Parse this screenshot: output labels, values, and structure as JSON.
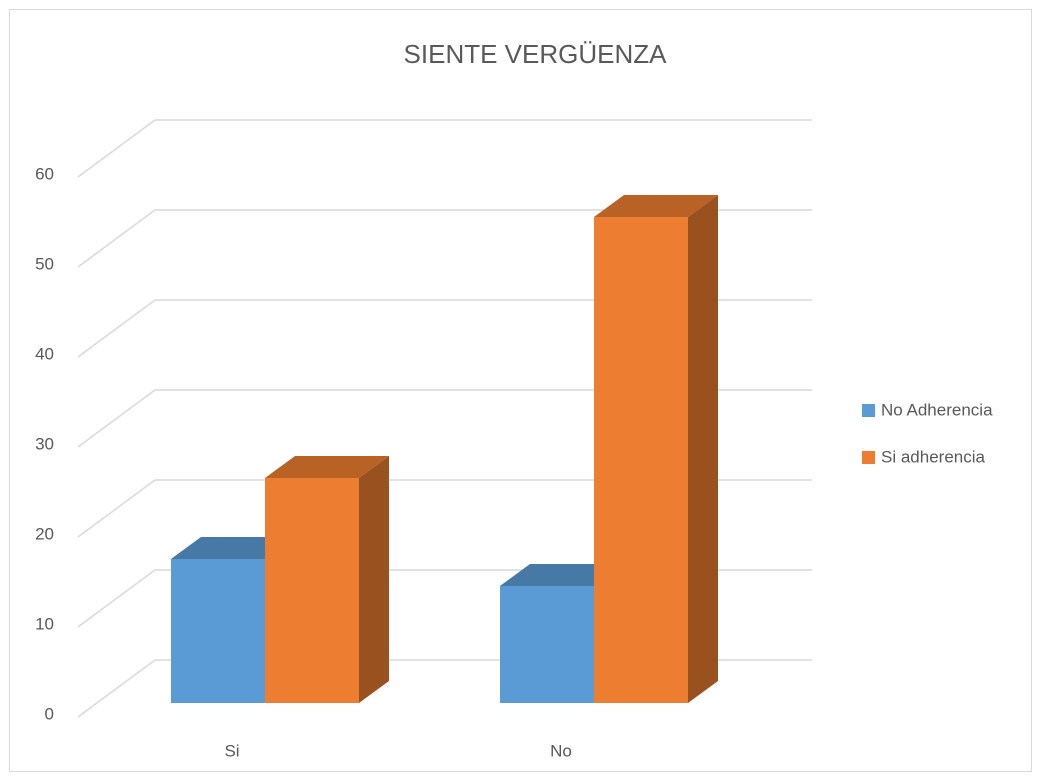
{
  "chart_data": {
    "type": "bar3d",
    "title": "SIENTE VERGÜENZA",
    "categories": [
      "Si",
      "No"
    ],
    "series": [
      {
        "name": "No Adherencia",
        "color": "#5b9bd5",
        "values": [
          16,
          13
        ]
      },
      {
        "name": "Si adherencia",
        "color": "#ed7d31",
        "values": [
          25,
          54
        ]
      }
    ],
    "ylim": [
      0,
      60
    ],
    "yticks": [
      0,
      10,
      20,
      30,
      40,
      50,
      60
    ],
    "grid": true,
    "legend": "right"
  }
}
